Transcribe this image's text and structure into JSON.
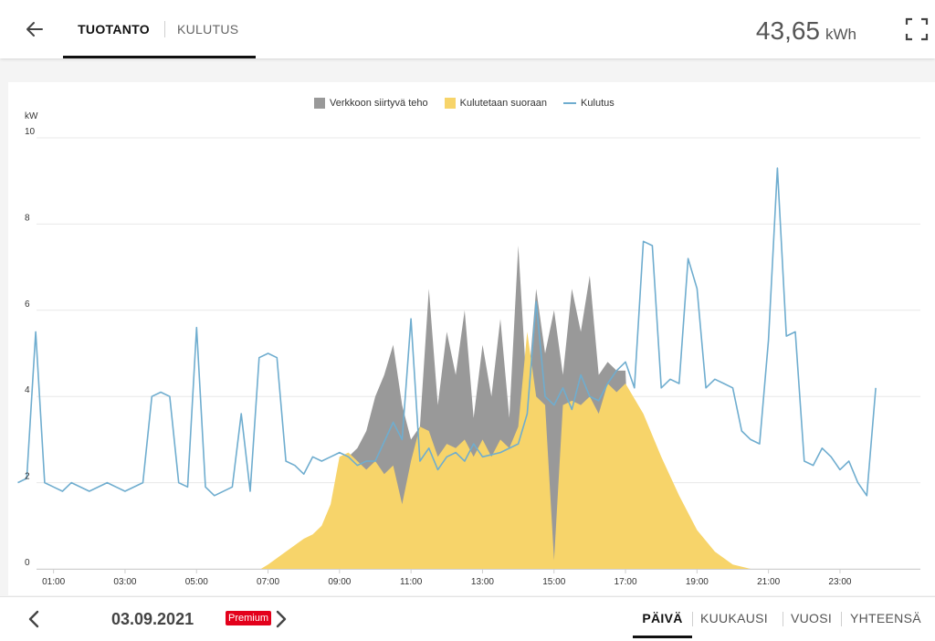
{
  "header": {
    "tabs": [
      "TUOTANTO",
      "KULUTUS"
    ],
    "active_tab": "TUOTANTO",
    "total_value": "43,65",
    "total_unit": "kWh"
  },
  "footer": {
    "date": "03.09.2021",
    "premium_badge": "Premium",
    "periods": [
      "PÄIVÄ",
      "KUUKAUSI",
      "VUOSI",
      "YHTEENSÄ"
    ],
    "active_period": "PÄIVÄ"
  },
  "colors": {
    "grid_export": "#999999",
    "self_consumed": "#f7d46a",
    "consumption": "#6fadcf",
    "text": "#333333"
  },
  "chart_data": {
    "type": "area",
    "ylabel": "kW",
    "ylim": [
      0,
      10
    ],
    "yticks": [
      "0",
      "2",
      "4",
      "6",
      "8",
      "10"
    ],
    "xlim": [
      0,
      24
    ],
    "xticks": [
      "01:00",
      "03:00",
      "05:00",
      "07:00",
      "09:00",
      "11:00",
      "13:00",
      "15:00",
      "17:00",
      "19:00",
      "21:00",
      "23:00"
    ],
    "legend_position": "top-center",
    "series": [
      {
        "name": "Verkkoon siirtyvä teho",
        "kind": "area",
        "x": [
          9.0,
          9.5,
          9.75,
          10.0,
          10.25,
          10.5,
          10.75,
          11.0,
          11.25,
          11.5,
          11.75,
          12.0,
          12.25,
          12.5,
          12.75,
          13.0,
          13.25,
          13.5,
          13.75,
          14.0,
          14.25,
          14.5,
          14.75,
          15.0,
          15.25,
          15.5,
          15.75,
          16.0,
          16.25,
          16.5,
          16.75,
          17.0,
          17.25
        ],
        "values": [
          2.4,
          2.8,
          3.2,
          4.0,
          4.5,
          5.2,
          3.8,
          3.0,
          3.3,
          6.5,
          3.8,
          5.5,
          4.5,
          6.0,
          3.5,
          5.2,
          4.0,
          5.8,
          3.5,
          7.5,
          4.0,
          6.5,
          5.0,
          6.0,
          4.5,
          6.5,
          5.5,
          6.8,
          4.5,
          4.8,
          4.6,
          4.6,
          0.0
        ]
      },
      {
        "name": "Kulutetaan suoraan",
        "kind": "area",
        "x": [
          6.8,
          7.0,
          7.5,
          8.0,
          8.25,
          8.5,
          8.75,
          9.0,
          9.25,
          9.5,
          9.75,
          10.0,
          10.25,
          10.5,
          10.75,
          11.0,
          11.25,
          11.5,
          11.75,
          12.0,
          12.25,
          12.5,
          12.75,
          13.0,
          13.25,
          13.5,
          13.75,
          14.0,
          14.25,
          14.5,
          14.75,
          15.0,
          15.25,
          15.5,
          15.75,
          16.0,
          16.25,
          16.5,
          16.75,
          17.0,
          17.5,
          18.0,
          18.5,
          19.0,
          19.5,
          20.0,
          20.5,
          20.75
        ],
        "values": [
          0.0,
          0.1,
          0.4,
          0.7,
          0.8,
          1.0,
          1.5,
          2.6,
          2.7,
          2.5,
          2.3,
          2.5,
          2.2,
          2.4,
          1.5,
          2.5,
          3.3,
          3.2,
          2.6,
          2.9,
          2.8,
          3.0,
          2.6,
          3.0,
          2.6,
          3.0,
          2.8,
          3.3,
          5.5,
          4.0,
          3.8,
          0.2,
          3.8,
          3.9,
          3.8,
          4.0,
          3.6,
          4.3,
          4.1,
          4.3,
          3.6,
          2.6,
          1.7,
          0.9,
          0.4,
          0.1,
          0.0,
          0.0
        ]
      },
      {
        "name": "Kulutus",
        "kind": "line",
        "x": [
          0.0,
          0.25,
          0.5,
          0.75,
          1.0,
          1.25,
          1.5,
          2.0,
          2.5,
          3.0,
          3.5,
          3.75,
          4.0,
          4.25,
          4.5,
          4.75,
          5.0,
          5.25,
          5.5,
          6.0,
          6.25,
          6.5,
          6.75,
          7.0,
          7.25,
          7.5,
          7.75,
          8.0,
          8.25,
          8.5,
          8.75,
          9.0,
          9.25,
          9.5,
          9.75,
          10.0,
          10.5,
          10.75,
          11.0,
          11.25,
          11.5,
          11.75,
          12.0,
          12.25,
          12.5,
          12.75,
          13.0,
          13.5,
          14.0,
          14.25,
          14.5,
          14.75,
          15.0,
          15.25,
          15.5,
          15.75,
          16.0,
          16.25,
          16.5,
          16.75,
          17.0,
          17.25,
          17.5,
          17.75,
          18.0,
          18.25,
          18.5,
          18.75,
          19.0,
          19.25,
          19.5,
          19.75,
          20.0,
          20.25,
          20.5,
          20.75,
          21.0,
          21.25,
          21.5,
          21.75,
          22.0,
          22.25,
          22.5,
          22.75,
          23.0,
          23.25,
          23.5,
          23.75,
          24.0
        ],
        "values": [
          2.0,
          2.1,
          5.5,
          2.0,
          1.9,
          1.8,
          2.0,
          1.8,
          2.0,
          1.8,
          2.0,
          4.0,
          4.1,
          4.0,
          2.0,
          1.9,
          5.6,
          1.9,
          1.7,
          1.9,
          3.6,
          1.8,
          4.9,
          5.0,
          4.9,
          2.5,
          2.4,
          2.2,
          2.6,
          2.5,
          2.6,
          2.7,
          2.6,
          2.4,
          2.5,
          2.5,
          3.4,
          3.0,
          5.8,
          2.5,
          2.8,
          2.3,
          2.6,
          2.7,
          2.5,
          2.9,
          2.6,
          2.7,
          2.9,
          3.6,
          6.2,
          4.0,
          3.8,
          4.2,
          3.7,
          4.5,
          4.0,
          3.9,
          4.3,
          4.6,
          4.8,
          4.2,
          7.6,
          7.5,
          4.2,
          4.4,
          4.3,
          7.2,
          6.5,
          4.2,
          4.4,
          4.3,
          4.2,
          3.2,
          3.0,
          2.9,
          5.3,
          9.3,
          5.4,
          5.5,
          2.5,
          2.4,
          2.8,
          2.6,
          2.3,
          2.5,
          2.0,
          1.7,
          4.2
        ]
      }
    ]
  }
}
